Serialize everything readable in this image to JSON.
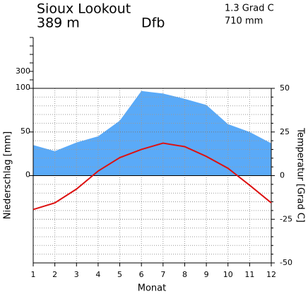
{
  "chart_data": {
    "type": "climate",
    "title": "Sioux Lookout",
    "elevation": "389 m",
    "climate_class": "Dfb",
    "mean_temperature": "1.3 Grad C",
    "annual_precipitation": "710 mm",
    "x_label": "Monat",
    "y_label": "Niederschlag [mm]",
    "y2_label": "Temperatur [Grad C]",
    "x": [
      1,
      2,
      3,
      4,
      5,
      6,
      7,
      8,
      9,
      10,
      11,
      12
    ],
    "xlim": [
      1,
      12
    ],
    "xticks": [
      1,
      2,
      3,
      4,
      5,
      6,
      7,
      8,
      9,
      10,
      11,
      12
    ],
    "ylim": [
      -100,
      100
    ],
    "yticks": [
      0,
      50,
      100
    ],
    "y_upper_ticks": [
      300
    ],
    "y_upper_minor_ticks": [
      200,
      400,
      500,
      600,
      700
    ],
    "y2lim": [
      -50,
      50
    ],
    "y2ticks": [
      -50,
      -25,
      0,
      25,
      50
    ],
    "y2_minor_ticks": [
      -45,
      -40,
      -35,
      -30,
      -20,
      -15,
      -10,
      -5,
      5,
      10,
      15,
      20,
      30,
      35,
      40,
      45
    ],
    "grid": true,
    "series": [
      {
        "color": "#5aaaf8",
        "values": [
          35,
          28,
          38,
          45,
          63,
          97,
          94,
          88,
          81,
          59,
          50,
          37
        ]
      },
      {
        "color": "#dd1111",
        "axis": "y2",
        "values": [
          -19.4,
          -15.6,
          -7.7,
          2.6,
          10.3,
          15,
          18.6,
          16.6,
          11,
          4.2,
          -5.5,
          -15.6
        ]
      }
    ]
  }
}
